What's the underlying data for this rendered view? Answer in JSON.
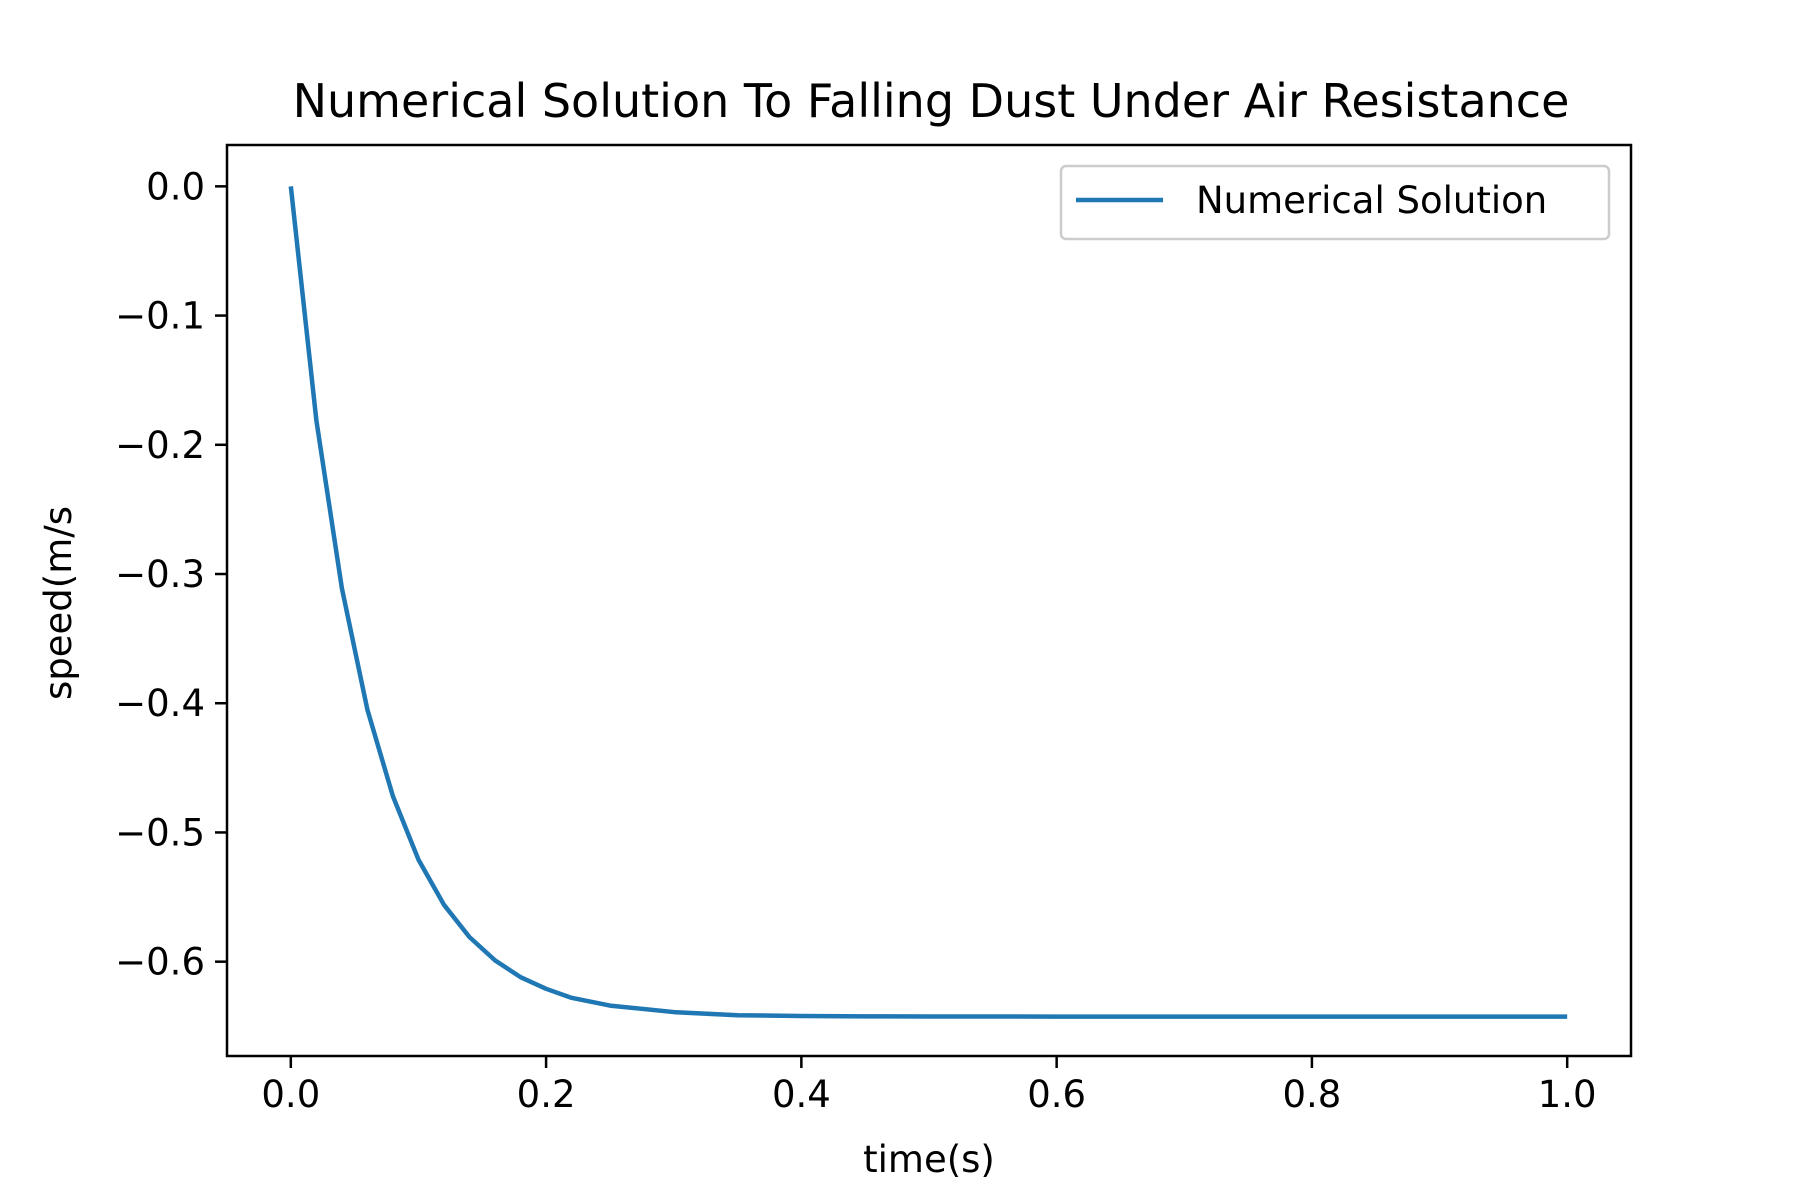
{
  "chart_data": {
    "type": "line",
    "title": "Numerical Solution To Falling Dust Under Air Resistance",
    "xlabel": "time(s)",
    "ylabel": "speed(m/s",
    "xlim": [
      -0.05,
      1.05
    ],
    "ylim": [
      -0.673,
      0.032
    ],
    "xticks": [
      0.0,
      0.2,
      0.4,
      0.6,
      0.8,
      1.0
    ],
    "xtick_labels": [
      "0.0",
      "0.2",
      "0.4",
      "0.6",
      "0.8",
      "1.0"
    ],
    "yticks": [
      0.0,
      -0.1,
      -0.2,
      -0.3,
      -0.4,
      -0.5,
      -0.6
    ],
    "ytick_labels": [
      "0.0",
      "−0.1",
      "−0.2",
      "−0.3",
      "−0.4",
      "−0.5",
      "−0.6"
    ],
    "grid": false,
    "legend_position": "top-right",
    "series": [
      {
        "name": "Numerical Solution",
        "color": "#1f77b4",
        "x": [
          0.0,
          0.02,
          0.04,
          0.06,
          0.08,
          0.1,
          0.12,
          0.14,
          0.16,
          0.18,
          0.2,
          0.22,
          0.25,
          0.3,
          0.35,
          0.4,
          0.45,
          0.5,
          0.6,
          0.7,
          0.8,
          0.9,
          1.0
        ],
        "y": [
          0.0,
          -0.181,
          -0.311,
          -0.405,
          -0.472,
          -0.521,
          -0.556,
          -0.581,
          -0.599,
          -0.612,
          -0.621,
          -0.628,
          -0.634,
          -0.639,
          -0.6415,
          -0.642,
          -0.6423,
          -0.6424,
          -0.6425,
          -0.6425,
          -0.6425,
          -0.6425,
          -0.6425
        ]
      }
    ]
  }
}
